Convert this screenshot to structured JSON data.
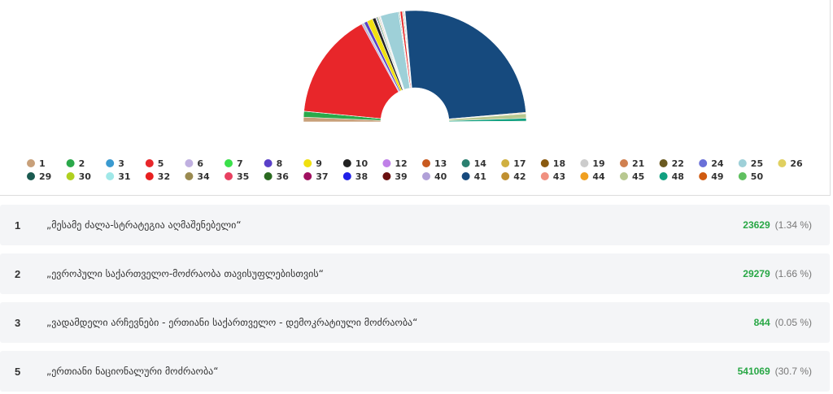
{
  "chart_data": {
    "type": "semi-donut",
    "categories": [
      "1",
      "2",
      "3",
      "5",
      "6",
      "7",
      "8",
      "9",
      "10",
      "12",
      "13",
      "14",
      "17",
      "18",
      "19",
      "21",
      "22",
      "24",
      "25",
      "26",
      "29",
      "30",
      "31",
      "32",
      "34",
      "35",
      "36",
      "37",
      "38",
      "39",
      "40",
      "41",
      "42",
      "43",
      "44",
      "45",
      "48",
      "49",
      "50"
    ],
    "series": [
      {
        "values": [
          1.34,
          1.66,
          0.05,
          30.7,
          0.6,
          0.2,
          0.9,
          1.7,
          0.9,
          0.2,
          0.1,
          0.3,
          0.2,
          0.1,
          0.3,
          0.1,
          0.1,
          0.1,
          5.2,
          0.1,
          0.2,
          0.1,
          0.1,
          0.6,
          0.1,
          0.1,
          0.2,
          0.1,
          0.1,
          0.1,
          0.1,
          49.5,
          0.2,
          0.1,
          0.1,
          1.3,
          0.8,
          0.1,
          0.1
        ],
        "colors": [
          "#c8a07a",
          "#2aa84a",
          "#3a9ad0",
          "#e8262a",
          "#c0b0e0",
          "#3ae04a",
          "#5a40c8",
          "#f0e010",
          "#222222",
          "#c080e8",
          "#c85a20",
          "#2a8070",
          "#d0b040",
          "#8a5a10",
          "#cccccc",
          "#d08050",
          "#6a5a20",
          "#6a70d8",
          "#9ed0d8",
          "#e0d060",
          "#1a5a50",
          "#b0d020",
          "#a0e8e8",
          "#e82020",
          "#9a8a50",
          "#e84060",
          "#2a6a20",
          "#a01060",
          "#2020e8",
          "#6a1010",
          "#b0a0d8",
          "#164a7e",
          "#c09030",
          "#f09080",
          "#f0a020",
          "#b8c890",
          "#10a080",
          "#d05a10",
          "#60c060"
        ]
      }
    ]
  },
  "results": [
    {
      "number": 1,
      "name": "„მესამე ძალა-სტრატეგია აღმაშენებელი“",
      "votes": 23629,
      "percent": "(1.34 %)"
    },
    {
      "number": 2,
      "name": "„ევროპული საქართველო-მოძრაობა თავისუფლებისთვის“",
      "votes": 29279,
      "percent": "(1.66 %)"
    },
    {
      "number": 3,
      "name": "„ვადამდელი არჩევნები - ერთიანი საქართველო - დემოკრატიული მოძრაობა“",
      "votes": 844,
      "percent": "(0.05 %)"
    },
    {
      "number": 5,
      "name": "„ერთიანი ნაციონალური მოძრაობა“",
      "votes": 541069,
      "percent": "(30.7 %)"
    }
  ]
}
